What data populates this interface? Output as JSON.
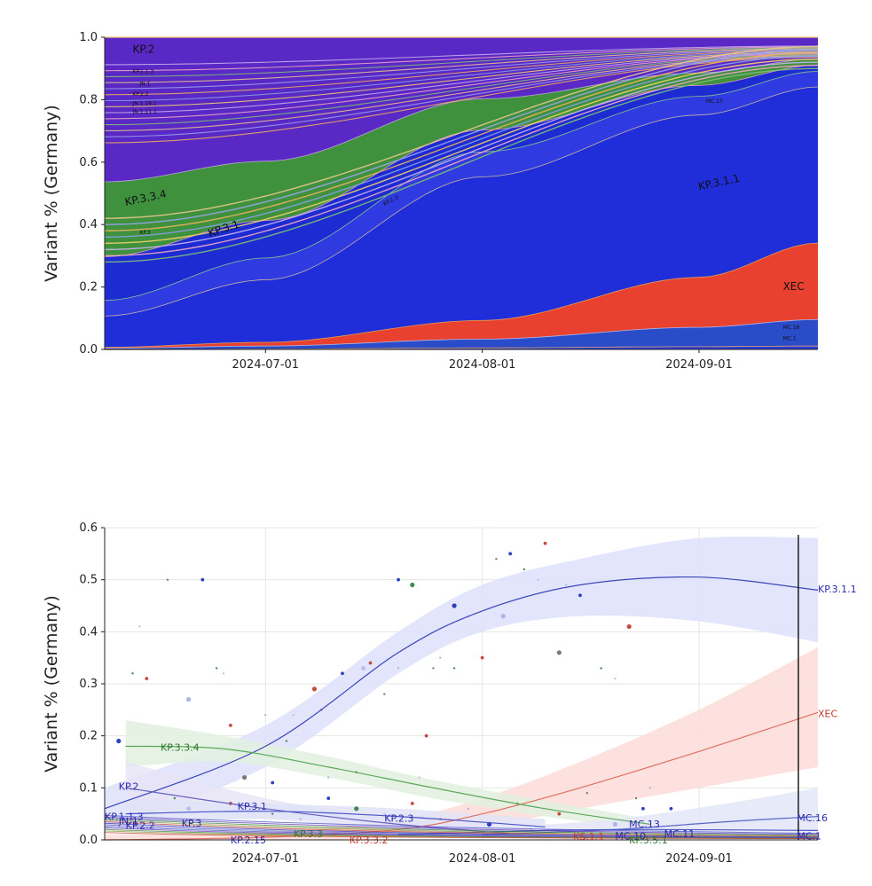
{
  "chart_data": [
    {
      "type": "area",
      "subtype": "stacked-100",
      "ylabel": "Variant % (Germany)",
      "ylim": [
        0,
        1
      ],
      "yticks": [
        "0.0",
        "0.2",
        "0.4",
        "0.6",
        "0.8",
        "1.0"
      ],
      "xlim": [
        "2024-06-08",
        "2024-09-18"
      ],
      "xticks": [
        "2024-07-01",
        "2024-08-01",
        "2024-09-01"
      ],
      "x": [
        "2024-06-08",
        "2024-07-01",
        "2024-08-01",
        "2024-09-01",
        "2024-09-18"
      ],
      "series": [
        {
          "name": "MC.1",
          "color": "#2a3bd6",
          "values": [
            0.0,
            0.002,
            0.006,
            0.01,
            0.012
          ]
        },
        {
          "name": "MC.16",
          "color": "#2a4cc9",
          "values": [
            0.005,
            0.01,
            0.028,
            0.062,
            0.085
          ]
        },
        {
          "name": "XEC",
          "color": "#e8412f",
          "values": [
            0.003,
            0.012,
            0.06,
            0.16,
            0.245
          ]
        },
        {
          "name": "KP.3.1.1",
          "color": "#1f2ed8",
          "values": [
            0.1,
            0.2,
            0.46,
            0.52,
            0.5
          ]
        },
        {
          "name": "KP.2.3",
          "color": "#2f3be0",
          "values": [
            0.05,
            0.07,
            0.08,
            0.06,
            0.05
          ]
        },
        {
          "name": "KP.3.1",
          "color": "#1d2bd2",
          "values": [
            0.14,
            0.12,
            0.07,
            0.035,
            0.02
          ]
        },
        {
          "name": "KP.3.3.4",
          "color": "#3f913e",
          "values": [
            0.24,
            0.19,
            0.1,
            0.04,
            0.02
          ]
        },
        {
          "name": "KP.2",
          "color": "#5a28c4",
          "values": [
            0.46,
            0.4,
            0.196,
            0.113,
            0.068
          ]
        }
      ],
      "labels": [
        {
          "text": "KP.2",
          "x": "2024-06-12",
          "y": 0.95
        },
        {
          "text": "KP.1.1.3",
          "x": "2024-06-12",
          "y": 0.885
        },
        {
          "text": "JN.1",
          "x": "2024-06-13",
          "y": 0.845
        },
        {
          "text": "KP.2.2",
          "x": "2024-06-12",
          "y": 0.812
        },
        {
          "text": "JN.1.16.1",
          "x": "2024-06-12",
          "y": 0.783
        },
        {
          "text": "JN.1.11.1",
          "x": "2024-06-12",
          "y": 0.756
        },
        {
          "text": "KP.3.3.4",
          "x": "2024-06-11",
          "y": 0.46
        },
        {
          "text": "KP.3",
          "x": "2024-06-13",
          "y": 0.37
        },
        {
          "text": "KP.3.1",
          "x": "2024-06-23",
          "y": 0.36
        },
        {
          "text": "KP.2.3",
          "x": "2024-07-18",
          "y": 0.46
        },
        {
          "text": "MC.13",
          "x": "2024-09-02",
          "y": 0.79
        },
        {
          "text": "KP.3.1.1",
          "x": "2024-09-01",
          "y": 0.51
        },
        {
          "text": "XEC",
          "x": "2024-09-13",
          "y": 0.19
        },
        {
          "text": "MC.16",
          "x": "2024-09-13",
          "y": 0.065
        },
        {
          "text": "MC.1",
          "x": "2024-09-13",
          "y": 0.03
        }
      ]
    },
    {
      "type": "scatter",
      "subtype": "scatter-with-smoothed-lines",
      "ylabel": "Variant % (Germany)",
      "ylim": [
        0,
        0.6
      ],
      "yticks": [
        "0.0",
        "0.1",
        "0.2",
        "0.3",
        "0.4",
        "0.5",
        "0.6"
      ],
      "xlim": [
        "2024-06-08",
        "2024-09-18"
      ],
      "xticks": [
        "2024-07-01",
        "2024-08-01",
        "2024-09-01"
      ],
      "grid": true,
      "series": [
        {
          "name": "KP.3.1.1",
          "color": "#3a46b8",
          "band": "#dde0fb",
          "x": [
            "2024-06-08",
            "2024-07-01",
            "2024-07-20",
            "2024-08-01",
            "2024-08-15",
            "2024-09-01",
            "2024-09-18"
          ],
          "y": [
            0.06,
            0.18,
            0.36,
            0.44,
            0.49,
            0.505,
            0.48
          ],
          "lower": [
            0.02,
            0.14,
            0.32,
            0.4,
            0.43,
            0.42,
            0.38
          ],
          "upper": [
            0.1,
            0.22,
            0.4,
            0.49,
            0.54,
            0.58,
            0.58
          ]
        },
        {
          "name": "XEC",
          "color": "#e07060",
          "band": "#fbdcd8",
          "x": [
            "2024-06-08",
            "2024-07-01",
            "2024-07-20",
            "2024-08-01",
            "2024-08-15",
            "2024-09-01",
            "2024-09-18"
          ],
          "y": [
            0.0,
            0.005,
            0.02,
            0.05,
            0.1,
            0.17,
            0.245
          ],
          "lower": [
            0.0,
            0.0,
            0.005,
            0.025,
            0.06,
            0.1,
            0.14
          ],
          "upper": [
            0.01,
            0.015,
            0.04,
            0.08,
            0.15,
            0.25,
            0.37
          ]
        },
        {
          "name": "KP.3.3.4",
          "color": "#5aa65a",
          "band": "#e2f1df",
          "x": [
            "2024-06-11",
            "2024-06-25",
            "2024-07-10",
            "2024-07-25",
            "2024-08-10",
            "2024-08-25"
          ],
          "y": [
            0.18,
            0.175,
            0.14,
            0.1,
            0.06,
            0.03
          ],
          "lower": [
            0.14,
            0.15,
            0.12,
            0.08,
            0.045,
            0.02
          ],
          "upper": [
            0.23,
            0.2,
            0.16,
            0.115,
            0.075,
            0.04
          ]
        },
        {
          "name": "KP.2",
          "color": "#6a62c0",
          "band": "#e8e4f6",
          "x": [
            "2024-06-11",
            "2024-07-01",
            "2024-07-20",
            "2024-08-05"
          ],
          "y": [
            0.1,
            0.06,
            0.03,
            0.012
          ],
          "lower": [
            0.06,
            0.04,
            0.02,
            0.005
          ],
          "upper": [
            0.15,
            0.08,
            0.04,
            0.02
          ]
        },
        {
          "name": "KP.3.1",
          "color": "#4b55c8",
          "band": "#e1e3f8",
          "x": [
            "2024-06-11",
            "2024-07-01",
            "2024-07-20",
            "2024-08-10"
          ],
          "y": [
            0.05,
            0.055,
            0.045,
            0.025
          ],
          "lower": [
            0.03,
            0.04,
            0.03,
            0.015
          ],
          "upper": [
            0.08,
            0.07,
            0.06,
            0.04
          ]
        },
        {
          "name": "MC.16",
          "color": "#5a66c8",
          "band": "#e2e6f8",
          "x": [
            "2024-08-01",
            "2024-08-20",
            "2024-09-05",
            "2024-09-18"
          ],
          "y": [
            0.01,
            0.02,
            0.035,
            0.045
          ],
          "lower": [
            0.004,
            0.01,
            0.018,
            0.02
          ],
          "upper": [
            0.02,
            0.04,
            0.07,
            0.1
          ]
        },
        {
          "name": "MC.13",
          "color": "#4c58c0",
          "band": "#e6e8f8",
          "x": [
            "2024-07-20",
            "2024-08-10",
            "2024-08-25",
            "2024-09-18"
          ],
          "y": [
            0.01,
            0.018,
            0.02,
            0.018
          ],
          "lower": [
            0.004,
            0.01,
            0.012,
            0.008
          ],
          "upper": [
            0.02,
            0.03,
            0.035,
            0.035
          ]
        }
      ],
      "points": [
        [
          "2024-06-10",
          0.19
        ],
        [
          "2024-06-12",
          0.32
        ],
        [
          "2024-06-13",
          0.41
        ],
        [
          "2024-06-14",
          0.31
        ],
        [
          "2024-06-17",
          0.5
        ],
        [
          "2024-06-20",
          0.27
        ],
        [
          "2024-06-22",
          0.5
        ],
        [
          "2024-06-24",
          0.33
        ],
        [
          "2024-06-25",
          0.32
        ],
        [
          "2024-06-26",
          0.22
        ],
        [
          "2024-06-28",
          0.12
        ],
        [
          "2024-07-01",
          0.24
        ],
        [
          "2024-07-02",
          0.11
        ],
        [
          "2024-07-04",
          0.19
        ],
        [
          "2024-07-05",
          0.24
        ],
        [
          "2024-07-08",
          0.29
        ],
        [
          "2024-07-09",
          0.25
        ],
        [
          "2024-07-10",
          0.12
        ],
        [
          "2024-07-12",
          0.32
        ],
        [
          "2024-07-14",
          0.13
        ],
        [
          "2024-07-15",
          0.33
        ],
        [
          "2024-07-16",
          0.34
        ],
        [
          "2024-07-18",
          0.28
        ],
        [
          "2024-07-20",
          0.33
        ],
        [
          "2024-07-20",
          0.5
        ],
        [
          "2024-07-22",
          0.49
        ],
        [
          "2024-07-23",
          0.12
        ],
        [
          "2024-07-24",
          0.2
        ],
        [
          "2024-07-25",
          0.33
        ],
        [
          "2024-07-26",
          0.35
        ],
        [
          "2024-07-28",
          0.45
        ],
        [
          "2024-07-28",
          0.33
        ],
        [
          "2024-07-30",
          0.43
        ],
        [
          "2024-08-01",
          0.35
        ],
        [
          "2024-08-03",
          0.54
        ],
        [
          "2024-08-04",
          0.43
        ],
        [
          "2024-08-05",
          0.55
        ],
        [
          "2024-08-07",
          0.52
        ],
        [
          "2024-08-09",
          0.5
        ],
        [
          "2024-08-10",
          0.57
        ],
        [
          "2024-08-12",
          0.36
        ],
        [
          "2024-08-13",
          0.49
        ],
        [
          "2024-08-15",
          0.47
        ],
        [
          "2024-08-18",
          0.33
        ],
        [
          "2024-08-20",
          0.31
        ],
        [
          "2024-08-22",
          0.41
        ],
        [
          "2024-08-23",
          0.08
        ],
        [
          "2024-08-25",
          0.1
        ],
        [
          "2024-08-28",
          0.06
        ],
        [
          "2024-06-18",
          0.08
        ],
        [
          "2024-06-20",
          0.06
        ],
        [
          "2024-06-26",
          0.07
        ],
        [
          "2024-07-02",
          0.05
        ],
        [
          "2024-07-06",
          0.04
        ],
        [
          "2024-07-10",
          0.08
        ],
        [
          "2024-07-14",
          0.06
        ],
        [
          "2024-07-18",
          0.05
        ],
        [
          "2024-07-22",
          0.07
        ],
        [
          "2024-07-26",
          0.04
        ],
        [
          "2024-07-30",
          0.06
        ],
        [
          "2024-08-02",
          0.03
        ],
        [
          "2024-08-06",
          0.07
        ],
        [
          "2024-08-08",
          0.02
        ],
        [
          "2024-08-12",
          0.05
        ],
        [
          "2024-08-16",
          0.09
        ],
        [
          "2024-08-20",
          0.03
        ],
        [
          "2024-08-24",
          0.06
        ]
      ],
      "labels": [
        {
          "text": "KP.3.3.4",
          "x": "2024-06-16",
          "y": 0.178,
          "color": "#2d7a2d"
        },
        {
          "text": "KP.2",
          "x": "2024-06-10",
          "y": 0.103,
          "color": "#2a2ab0"
        },
        {
          "text": "KP.3.1",
          "x": "2024-06-27",
          "y": 0.065,
          "color": "#2a2ab0"
        },
        {
          "text": "KP.1.1.3",
          "x": "2024-06-08",
          "y": 0.045,
          "color": "#2a2ab0"
        },
        {
          "text": "JN.1",
          "x": "2024-06-10",
          "y": 0.037,
          "color": "#2a2ab0"
        },
        {
          "text": "KP.2.2",
          "x": "2024-06-11",
          "y": 0.028,
          "color": "#2a2ab0"
        },
        {
          "text": "KP.3",
          "x": "2024-06-19",
          "y": 0.032,
          "color": "#2a2ab0"
        },
        {
          "text": "KP.2.3",
          "x": "2024-07-18",
          "y": 0.042,
          "color": "#2a2ab0"
        },
        {
          "text": "KP.3.1.1",
          "x": "2024-09-18",
          "y": 0.482,
          "color": "#2a2ab0"
        },
        {
          "text": "XEC",
          "x": "2024-09-18",
          "y": 0.243,
          "color": "#c0392b"
        },
        {
          "text": "MC.16",
          "x": "2024-09-15",
          "y": 0.043,
          "color": "#2a2ab0"
        },
        {
          "text": "MC.13",
          "x": "2024-08-22",
          "y": 0.031,
          "color": "#2a2ab0"
        },
        {
          "text": "MC.11",
          "x": "2024-08-27",
          "y": 0.012,
          "color": "#2a2ab0"
        },
        {
          "text": "MC.10",
          "x": "2024-08-20",
          "y": 0.008,
          "color": "#2a2ab0"
        },
        {
          "text": "MC.1",
          "x": "2024-09-15",
          "y": 0.008,
          "color": "#2a2ab0"
        },
        {
          "text": "KS.1.1",
          "x": "2024-08-14",
          "y": 0.007,
          "color": "#c0392b"
        },
        {
          "text": "KP.3.3.2",
          "x": "2024-07-13",
          "y": 0.0,
          "color": "#c0392b"
        },
        {
          "text": "KP.3.5.1",
          "x": "2024-08-22",
          "y": 0.0,
          "color": "#2d7a2d"
        },
        {
          "text": "KP.2.15",
          "x": "2024-06-26",
          "y": 0.0,
          "color": "#2a2ab0"
        },
        {
          "text": "KP.3.3",
          "x": "2024-07-05",
          "y": 0.012,
          "color": "#2d7a2d"
        }
      ]
    }
  ]
}
